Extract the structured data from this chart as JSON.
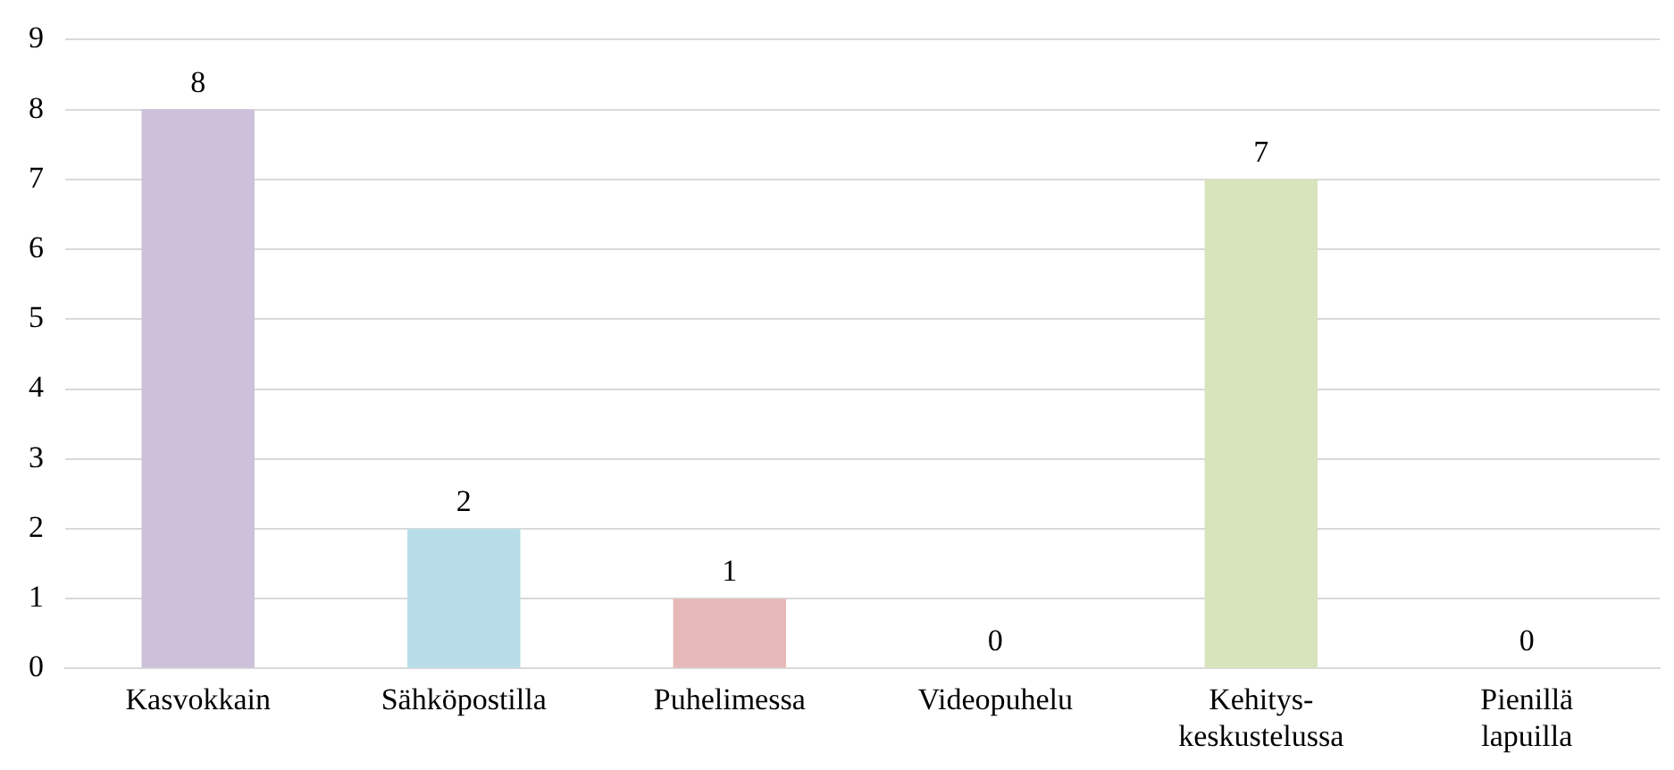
{
  "chart_data": {
    "type": "bar",
    "categories": [
      "Kasvokkain",
      "Sähköpostilla",
      "Puhelimessa",
      "Videopuhelu",
      "Kehitys- keskustelussa",
      "Pienillä lapuilla"
    ],
    "values": [
      8,
      2,
      1,
      0,
      7,
      0
    ],
    "colors": [
      "#ccc0da",
      "#b7dee8",
      "#e6b9b8",
      "#c5d9f1",
      "#d8e4bc",
      "#fcd5b4"
    ],
    "ylim": [
      0,
      9
    ],
    "yticks": [
      0,
      1,
      2,
      3,
      4,
      5,
      6,
      7,
      8,
      9
    ],
    "grid": "y",
    "data_labels": true,
    "legend": false
  }
}
